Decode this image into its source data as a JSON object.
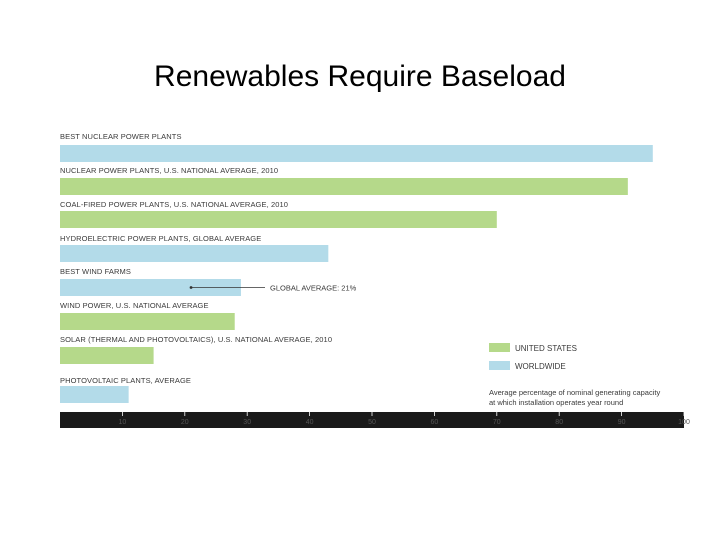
{
  "slide": {
    "title": "Renewables Require Baseload"
  },
  "chart_data": {
    "type": "bar",
    "orientation": "horizontal",
    "categories": [
      "BEST NUCLEAR POWER PLANTS",
      "NUCLEAR POWER PLANTS, U.S. NATIONAL AVERAGE, 2010",
      "COAL-FIRED POWER PLANTS, U.S. NATIONAL AVERAGE, 2010",
      "HYDROELECTRIC POWER PLANTS, GLOBAL AVERAGE",
      "BEST WIND FARMS",
      "WIND POWER, U.S. NATIONAL AVERAGE",
      "SOLAR (THERMAL AND PHOTOVOLTAICS), U.S. NATIONAL AVERAGE, 2010",
      "PHOTOVOLTAIC PLANTS, AVERAGE"
    ],
    "values": [
      95,
      91,
      70,
      43,
      29,
      28,
      15,
      11
    ],
    "bar_groups": [
      "WORLDWIDE",
      "UNITED STATES",
      "UNITED STATES",
      "WORLDWIDE",
      "WORLDWIDE",
      "UNITED STATES",
      "UNITED STATES",
      "WORLDWIDE"
    ],
    "xlim": [
      0,
      100
    ],
    "xticks": [
      10,
      20,
      30,
      40,
      50,
      60,
      70,
      80,
      90,
      100
    ],
    "legend": [
      {
        "label": "UNITED STATES",
        "color": "#b5d98a"
      },
      {
        "label": "WORLDWIDE",
        "color": "#b3dbe9"
      }
    ],
    "legend_position": "bottom-right",
    "legend_note_lines": [
      "Average percentage of nominal generating capacity",
      "at which installation operates year round"
    ],
    "annotation": {
      "text": "GLOBAL AVERAGE: 21%",
      "value": 21,
      "category_index": 4
    },
    "colors": {
      "axis_bar": "#1a1a1a",
      "label_text": "#3a3a3a"
    }
  }
}
